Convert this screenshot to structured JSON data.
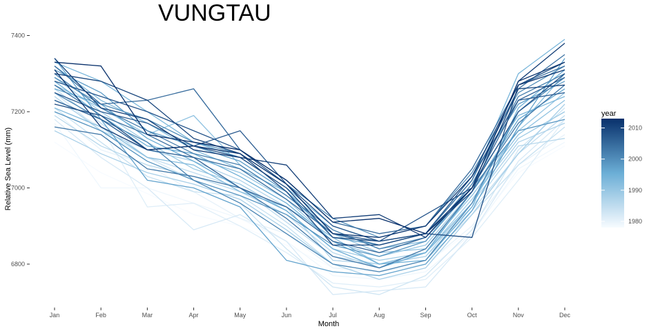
{
  "chart_data": {
    "type": "line",
    "title": "VUNGTAU",
    "xlabel": "Month",
    "ylabel": "Relative Sea Level (mm)",
    "categories": [
      "Jan",
      "Feb",
      "Mar",
      "Apr",
      "May",
      "Jun",
      "Jul",
      "Aug",
      "Sep",
      "Oct",
      "Nov",
      "Dec"
    ],
    "ylim": [
      6700,
      7400
    ],
    "yticks": [
      6800,
      7000,
      7200,
      7400
    ],
    "grid": false,
    "legend": {
      "title": "year",
      "position": "right",
      "type": "colorbar",
      "range": [
        1978,
        2013
      ],
      "ticks": [
        1980,
        1990,
        2000,
        2010
      ],
      "color_low": "#f7fbff",
      "color_high": "#08306b"
    },
    "series": [
      {
        "year": 1978,
        "values": [
          7120,
          7040,
          6985,
          6930,
          6900,
          6850,
          6790,
          6780,
          6800,
          6890,
          7040,
          7110
        ]
      },
      {
        "year": 1979,
        "values": [
          7170,
          7000,
          7000,
          6960,
          6920,
          6860,
          6770,
          6760,
          6780,
          6880,
          7050,
          7120
        ]
      },
      {
        "year": 1980,
        "values": [
          7200,
          7100,
          7060,
          6990,
          6920,
          6880,
          6790,
          6780,
          6800,
          6900,
          7060,
          7140
        ]
      },
      {
        "year": 1981,
        "values": [
          7230,
          7160,
          6950,
          6960,
          6900,
          6830,
          6750,
          6740,
          6760,
          6870,
          7020,
          7180
        ]
      },
      {
        "year": 1982,
        "values": [
          7180,
          7080,
          7000,
          6890,
          6930,
          6860,
          6720,
          6730,
          6740,
          6880,
          7070,
          7180
        ]
      },
      {
        "year": 1983,
        "values": [
          7250,
          7150,
          7080,
          7020,
          6960,
          6840,
          6740,
          6720,
          6770,
          6890,
          7100,
          7210
        ]
      },
      {
        "year": 1984,
        "values": [
          7210,
          7120,
          7030,
          6990,
          6980,
          6900,
          6800,
          6780,
          6810,
          6930,
          7060,
          7160
        ]
      },
      {
        "year": 1985,
        "values": [
          7260,
          7170,
          7080,
          7040,
          7000,
          6910,
          6820,
          6800,
          6820,
          6940,
          7090,
          7190
        ]
      },
      {
        "year": 1986,
        "values": [
          7190,
          7110,
          7060,
          7030,
          6990,
          6930,
          6830,
          6790,
          6830,
          6950,
          7110,
          7130
        ]
      },
      {
        "year": 1987,
        "values": [
          7240,
          7150,
          7100,
          7070,
          7020,
          6950,
          6810,
          6800,
          6820,
          6960,
          7120,
          7170
        ]
      },
      {
        "year": 1988,
        "values": [
          7150,
          7090,
          7040,
          7010,
          6970,
          6890,
          6800,
          6760,
          6790,
          6930,
          7090,
          7220
        ]
      },
      {
        "year": 1989,
        "values": [
          7290,
          7200,
          7120,
          7050,
          7010,
          6940,
          6840,
          6810,
          6830,
          6970,
          7130,
          7200
        ]
      },
      {
        "year": 1990,
        "values": [
          7230,
          7180,
          7100,
          7080,
          7040,
          6970,
          6860,
          6820,
          6850,
          6990,
          7150,
          7250
        ]
      },
      {
        "year": 1991,
        "values": [
          7270,
          7210,
          7140,
          7190,
          7060,
          6980,
          6880,
          6830,
          6840,
          6980,
          7140,
          7230
        ]
      },
      {
        "year": 1992,
        "values": [
          7210,
          7160,
          7080,
          7060,
          6990,
          6950,
          6870,
          6800,
          6830,
          6960,
          7160,
          7300
        ]
      },
      {
        "year": 1993,
        "values": [
          7320,
          7230,
          7170,
          7100,
          7050,
          6990,
          6890,
          6840,
          6860,
          7010,
          7190,
          7240
        ]
      },
      {
        "year": 1994,
        "values": [
          7330,
          7280,
          7200,
          7120,
          7080,
          7000,
          6900,
          6860,
          6880,
          7020,
          7300,
          7390
        ]
      },
      {
        "year": 1995,
        "values": [
          7280,
          7190,
          7110,
          7090,
          7030,
          6960,
          6860,
          6800,
          6810,
          6950,
          7210,
          7310
        ]
      },
      {
        "year": 1996,
        "values": [
          7260,
          7220,
          7130,
          7070,
          7000,
          6940,
          6840,
          6790,
          6830,
          6990,
          7180,
          7260
        ]
      },
      {
        "year": 1997,
        "values": [
          7340,
          7180,
          7020,
          7000,
          6950,
          6810,
          6780,
          6770,
          6800,
          6940,
          7160,
          7340
        ]
      },
      {
        "year": 1998,
        "values": [
          7310,
          7250,
          7150,
          7110,
          7070,
          6990,
          6870,
          6850,
          6880,
          7030,
          7220,
          7280
        ]
      },
      {
        "year": 1999,
        "values": [
          7200,
          7150,
          7070,
          7020,
          6980,
          6930,
          6850,
          6820,
          6860,
          7000,
          7150,
          7180
        ]
      },
      {
        "year": 2000,
        "values": [
          7290,
          7220,
          7180,
          7120,
          7090,
          7010,
          6920,
          6870,
          6900,
          7040,
          7250,
          7320
        ]
      },
      {
        "year": 2001,
        "values": [
          7250,
          7180,
          7120,
          7020,
          6960,
          6880,
          6800,
          6780,
          6810,
          6960,
          7200,
          7290
        ]
      },
      {
        "year": 2002,
        "values": [
          7300,
          7210,
          7150,
          7090,
          7060,
          6980,
          6890,
          6840,
          6870,
          7010,
          7240,
          7300
        ]
      },
      {
        "year": 2003,
        "values": [
          7160,
          7140,
          7050,
          7030,
          7000,
          6920,
          6820,
          6790,
          6840,
          6990,
          7170,
          7270
        ]
      },
      {
        "year": 2004,
        "values": [
          7270,
          7190,
          7140,
          7080,
          7050,
          6970,
          6880,
          6850,
          6880,
          7020,
          7260,
          7350
        ]
      },
      {
        "year": 2005,
        "values": [
          7320,
          7220,
          7230,
          7260,
          7100,
          7020,
          6910,
          6880,
          6900,
          7050,
          7270,
          7320
        ]
      },
      {
        "year": 2006,
        "values": [
          7230,
          7180,
          7100,
          7080,
          7000,
          6950,
          6860,
          6830,
          6870,
          7000,
          7230,
          7290
        ]
      },
      {
        "year": 2007,
        "values": [
          7250,
          7200,
          7170,
          7110,
          7150,
          7010,
          6880,
          6860,
          6880,
          7030,
          7230,
          7250
        ]
      },
      {
        "year": 2008,
        "values": [
          7280,
          7240,
          7200,
          7150,
          7100,
          7010,
          6900,
          6860,
          6930,
          7000,
          7200,
          7300
        ]
      },
      {
        "year": 2009,
        "values": [
          7220,
          7190,
          7100,
          7110,
          7080,
          7000,
          6870,
          6860,
          6880,
          6870,
          7270,
          7330
        ]
      },
      {
        "year": 2010,
        "values": [
          7300,
          7280,
          7230,
          7130,
          7090,
          6990,
          6850,
          6850,
          6880,
          6990,
          7260,
          7270
        ]
      },
      {
        "year": 2011,
        "values": [
          7340,
          7210,
          7180,
          7100,
          7080,
          7060,
          6920,
          6930,
          6870,
          7000,
          7280,
          7380
        ]
      },
      {
        "year": 2012,
        "values": [
          7310,
          7160,
          7100,
          7110,
          7090,
          7010,
          6880,
          6870,
          6900,
          7030,
          7270,
          7310
        ]
      },
      {
        "year": 2013,
        "values": [
          7330,
          7320,
          7140,
          7120,
          7100,
          7020,
          6910,
          6920,
          6880,
          7000,
          7280,
          7330
        ]
      }
    ]
  }
}
